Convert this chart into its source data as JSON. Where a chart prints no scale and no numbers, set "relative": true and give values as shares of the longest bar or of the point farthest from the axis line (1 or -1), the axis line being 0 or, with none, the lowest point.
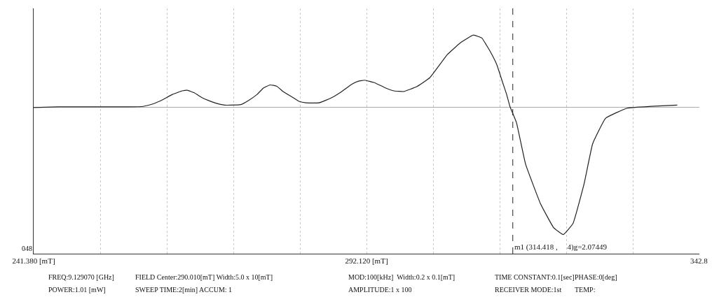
{
  "chart_data": {
    "type": "line",
    "relative": true,
    "x": [
      241.38,
      245.15,
      249.13,
      253.1,
      256.08,
      258.06,
      259.55,
      261.04,
      262.53,
      264.02,
      264.82,
      265.81,
      267.0,
      267.99,
      268.99,
      270.48,
      271.47,
      272.96,
      274.15,
      275.44,
      276.43,
      277.43,
      278.42,
      279.41,
      280.9,
      281.9,
      282.89,
      284.87,
      285.87,
      286.86,
      288.35,
      289.84,
      290.83,
      291.83,
      293.32,
      294.81,
      296.3,
      297.79,
      299.77,
      301.76,
      304.44,
      306.43,
      308.41,
      309.7,
      310.4,
      311.19,
      311.99,
      312.88,
      313.48,
      313.98,
      314.97,
      316.36,
      318.64,
      320.63,
      322.12,
      323.61,
      325.29,
      326.59,
      328.57,
      331.85,
      335.52,
      339.49
    ],
    "series": [
      {
        "color": "#222222",
        "values": [
          0,
          0.005,
          0.005,
          0.005,
          0.005,
          0.009,
          0.028,
          0.061,
          0.103,
          0.131,
          0.136,
          0.117,
          0.079,
          0.056,
          0.037,
          0.019,
          0.019,
          0.023,
          0.056,
          0.103,
          0.154,
          0.178,
          0.168,
          0.126,
          0.079,
          0.047,
          0.037,
          0.037,
          0.056,
          0.079,
          0.126,
          0.182,
          0.206,
          0.215,
          0.196,
          0.159,
          0.131,
          0.126,
          0.164,
          0.234,
          0.416,
          0.509,
          0.57,
          0.547,
          0.491,
          0.421,
          0.336,
          0.196,
          0.103,
          0.009,
          -0.117,
          -0.444,
          -0.757,
          -0.944,
          -1,
          -0.911,
          -0.6,
          -0.285,
          -0.084,
          -0.005,
          0.009,
          0.019
        ]
      }
    ],
    "xlim": [
      241.38,
      342.86
    ],
    "xticks": [
      {
        "value": 241.38,
        "label": "241.380 [mT]"
      },
      {
        "value": 251.528,
        "label": null
      },
      {
        "value": 261.676,
        "label": null
      },
      {
        "value": 271.824,
        "label": null
      },
      {
        "value": 281.972,
        "label": null
      },
      {
        "value": 292.12,
        "label": "292.120 [mT]"
      },
      {
        "value": 302.268,
        "label": null
      },
      {
        "value": 312.416,
        "label": null
      },
      {
        "value": 322.564,
        "label": null
      },
      {
        "value": 332.712,
        "label": null
      },
      {
        "value": 342.8,
        "label": "342.8"
      }
    ],
    "grid": "x",
    "marker": "none",
    "line_style": "solid",
    "ref_lines": [
      {
        "axis": "x",
        "value": 314.418,
        "label": "m1 (314.418 ,     4)g=2.07449",
        "color": "#222222",
        "line_style": "dashed"
      }
    ],
    "annotations": [
      "048",
      "FREQ:9.129070 [GHz]",
      "FIELD Center:290.010[mT] Width:5.0 x 10[mT]",
      "MOD:100[kHz]  Width:0.2 x 0.1[mT]",
      "TIME CONSTANT:0.1[sec]",
      "PHASE:0[deg]",
      "POWER:1.01 [mW]",
      "SWEEP TIME:2[min] ACCUM: 1",
      "AMPLITUDE:1 x 100",
      "RECEIVER MODE:1st",
      "TEMP:"
    ]
  }
}
